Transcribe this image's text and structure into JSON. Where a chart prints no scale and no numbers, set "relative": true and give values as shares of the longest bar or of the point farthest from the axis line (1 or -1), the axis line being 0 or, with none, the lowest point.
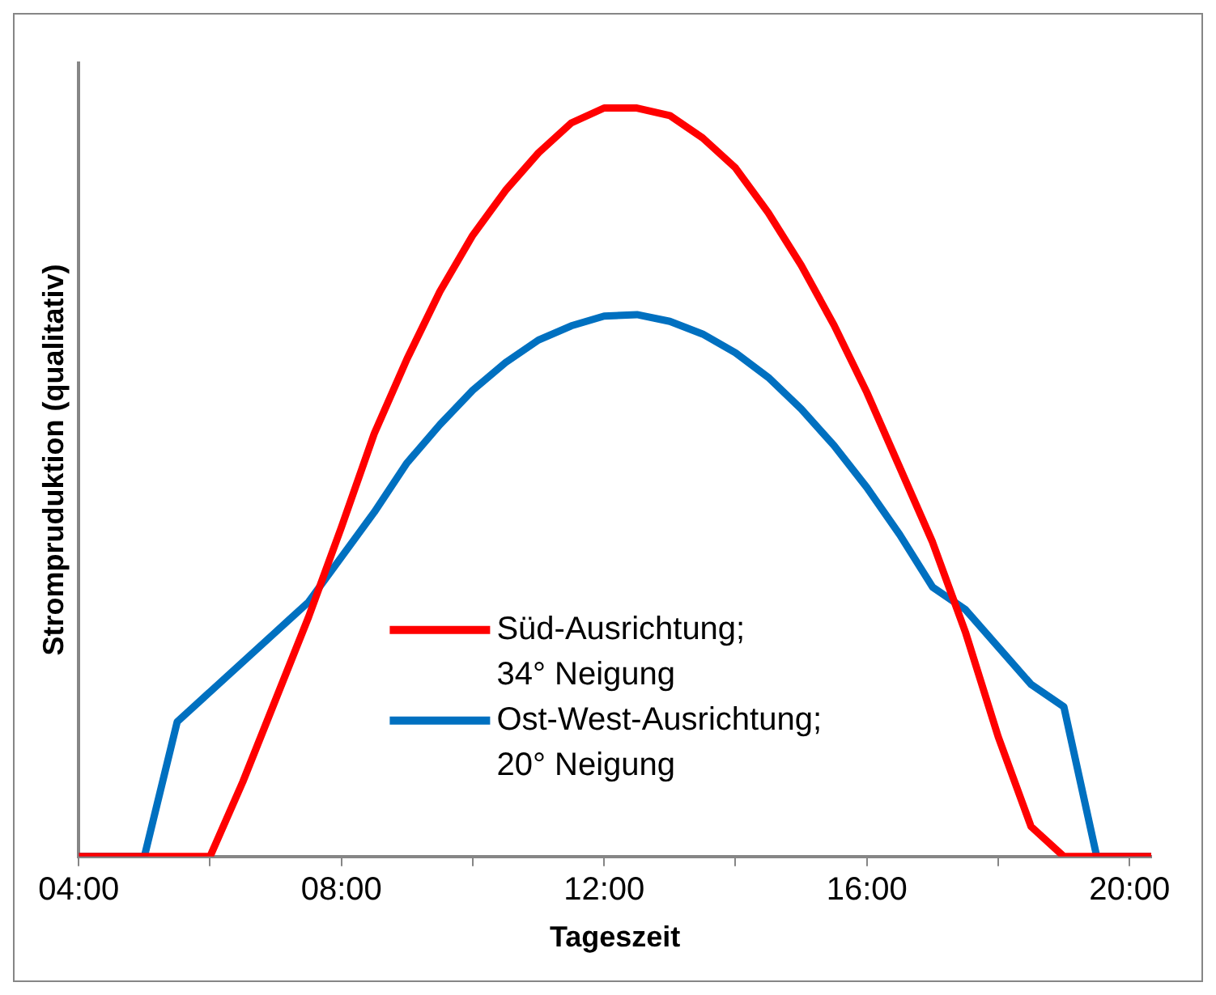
{
  "chart_data": {
    "type": "line",
    "relative": true,
    "xlabel": "Tageszeit",
    "ylabel": "Strompruduktion (qualitativ)",
    "xlim": [
      4,
      20.33
    ],
    "xticks": [
      {
        "value": 4,
        "label": "04:00"
      },
      {
        "value": 6,
        "label": null
      },
      {
        "value": 8,
        "label": "08:00"
      },
      {
        "value": 10,
        "label": null
      },
      {
        "value": 12,
        "label": "12:00"
      },
      {
        "value": 14,
        "label": null
      },
      {
        "value": 16,
        "label": "16:00"
      },
      {
        "value": 18,
        "label": null
      },
      {
        "value": 20,
        "label": "20:00"
      }
    ],
    "x": [
      4,
      4.5,
      5,
      5.5,
      6,
      6.5,
      7,
      7.5,
      8,
      8.5,
      9,
      9.5,
      10,
      10.5,
      11,
      11.5,
      12,
      12.5,
      13,
      13.5,
      14,
      14.5,
      15,
      15.5,
      16,
      16.5,
      17,
      17.5,
      18,
      18.5,
      19,
      19.5,
      20,
      20.33
    ],
    "series": [
      {
        "name": "Süd-Ausrichtung; 34° Neigung",
        "color": "#ff0000",
        "values": [
          0,
          0,
          0,
          0,
          0,
          0.1,
          0.21,
          0.32,
          0.44,
          0.565,
          0.665,
          0.755,
          0.83,
          0.89,
          0.94,
          0.98,
          1,
          1,
          0.99,
          0.96,
          0.92,
          0.86,
          0.79,
          0.71,
          0.62,
          0.52,
          0.42,
          0.3,
          0.16,
          0.04,
          0,
          0,
          0,
          0
        ]
      },
      {
        "name": "Ost-West-Ausrichtung; 20° Neigung",
        "color": "#0070c0",
        "values": [
          0,
          0,
          0,
          0.18,
          0.22,
          0.26,
          0.3,
          0.34,
          0.4,
          0.46,
          0.526,
          0.577,
          0.623,
          0.66,
          0.69,
          0.709,
          0.722,
          0.724,
          0.715,
          0.698,
          0.673,
          0.64,
          0.598,
          0.549,
          0.493,
          0.43,
          0.36,
          0.33,
          0.28,
          0.23,
          0.2,
          0,
          0,
          0
        ]
      }
    ],
    "grid": false,
    "legend": "bottom",
    "marker": "none",
    "line_style": "solid"
  }
}
